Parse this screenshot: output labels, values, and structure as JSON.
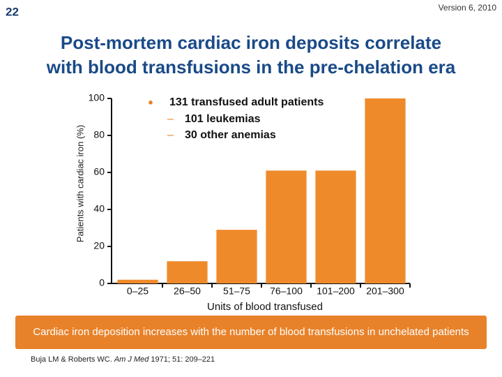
{
  "slide_number": "22",
  "version": "Version 6, 2010",
  "title_lines": [
    "Post-mortem cardiac iron deposits correlate",
    "with blood transfusions in the pre-chelation era"
  ],
  "chart_data": {
    "type": "bar",
    "ylabel": "Patients with cardiac iron (%)",
    "xlabel": "Units of blood transfused",
    "categories": [
      "0–25",
      "26–50",
      "51–75",
      "76–100",
      "101–200",
      "201–300"
    ],
    "values": [
      2,
      12,
      29,
      61,
      61,
      100
    ],
    "color": "#ef8a2b",
    "ylim": [
      0,
      100
    ],
    "yticks": [
      0,
      20,
      40,
      60,
      80,
      100
    ],
    "note": "131 transfused adult patients",
    "note_items": [
      "101 leukemias",
      "30 other anemias"
    ]
  },
  "caption": "Cardiac iron deposition increases with the number of blood transfusions in unchelated patients",
  "citation": {
    "authors": "Buja LM & Roberts WC.",
    "journal": "Am J Med",
    "details": "1971; 51: 209–221"
  }
}
